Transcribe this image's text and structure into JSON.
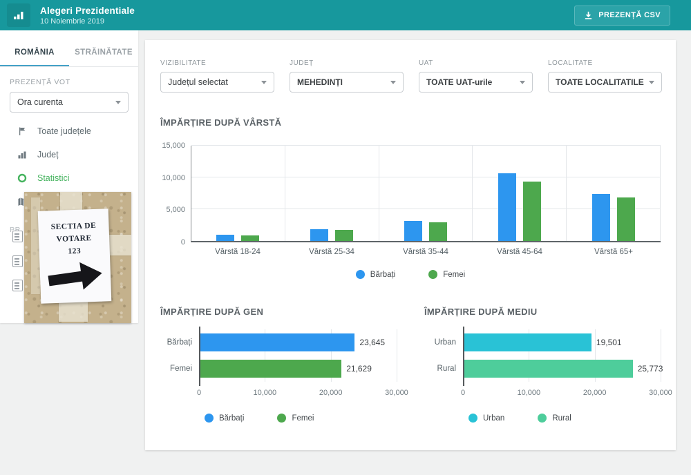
{
  "header": {
    "app_title": "Alegeri Prezidentiale",
    "app_subtitle": "10 Noiembrie 2019",
    "csv_button_label": "PREZENȚĂ CSV",
    "header_bg": "#17989D"
  },
  "sidebar": {
    "tabs": [
      {
        "label": "ROMÂNIA",
        "active": true
      },
      {
        "label": "STRĂINĂTATE",
        "active": false
      }
    ],
    "section_label": "PREZENȚĂ VOT",
    "time_select_value": "Ora curenta",
    "nav_items": [
      {
        "label": "Toate județele",
        "icon": "flag-icon",
        "active": false
      },
      {
        "label": "Județ",
        "icon": "bar-chart-icon",
        "active": false
      },
      {
        "label": "Statistici",
        "icon": "ring-icon",
        "active": true
      },
      {
        "label": "Hartă",
        "icon": "map-icon",
        "active": false
      }
    ],
    "truncated_section_label": "PR",
    "active_color": "#45B35E",
    "photo_sign": {
      "line1": "SECTIA DE",
      "line2": "VOTARE",
      "line3": "123"
    }
  },
  "filters": [
    {
      "label": "VIZIBILITATE",
      "value": "Județul selectat"
    },
    {
      "label": "JUDEȚ",
      "value": "MEHEDINȚI"
    },
    {
      "label": "UAT",
      "value": "TOATE UAT-urile"
    },
    {
      "label": "LOCALITATE",
      "value": "TOATE LOCALITATILE"
    }
  ],
  "chart_data": [
    {
      "type": "bar",
      "title": "ÎMPĂRȚIRE DUPĂ VÂRSTĂ",
      "categories": [
        "Vârstă 18-24",
        "Vârstă 25-34",
        "Vârstă 35-44",
        "Vârstă 45-64",
        "Vârstă 65+"
      ],
      "series": [
        {
          "name": "Bărbați",
          "color": "#2D96EF",
          "values": [
            950,
            1850,
            3100,
            10600,
            7350
          ]
        },
        {
          "name": "Femei",
          "color": "#4DA84D",
          "values": [
            850,
            1700,
            2950,
            9400,
            6850
          ]
        }
      ],
      "ylim": [
        0,
        15000
      ],
      "yticks": [
        "15,000",
        "10,000",
        "5,000",
        "0"
      ],
      "grid": true,
      "legend_position": "bottom-center"
    },
    {
      "type": "bar-horizontal",
      "title": "ÎMPĂRȚIRE DUPĂ GEN",
      "categories": [
        "Bărbați",
        "Femei"
      ],
      "values": [
        23645,
        21629
      ],
      "value_labels": [
        "23,645",
        "21,629"
      ],
      "colors": [
        "#2D96EF",
        "#4DA84D"
      ],
      "xlim": [
        0,
        30000
      ],
      "xticks": [
        "0",
        "10,000",
        "20,000",
        "30,000"
      ],
      "legend": [
        {
          "label": "Bărbați",
          "color": "#2D96EF"
        },
        {
          "label": "Femei",
          "color": "#4DA84D"
        }
      ]
    },
    {
      "type": "bar-horizontal",
      "title": "ÎMPĂRȚIRE DUPĂ MEDIU",
      "categories": [
        "Urban",
        "Rural"
      ],
      "values": [
        19501,
        25773
      ],
      "value_labels": [
        "19,501",
        "25,773"
      ],
      "colors": [
        "#29C2D6",
        "#4ECD9B"
      ],
      "xlim": [
        0,
        30000
      ],
      "xticks": [
        "0",
        "10,000",
        "20,000",
        "30,000"
      ],
      "legend": [
        {
          "label": "Urban",
          "color": "#29C2D6"
        },
        {
          "label": "Rural",
          "color": "#4ECD9B"
        }
      ]
    }
  ]
}
